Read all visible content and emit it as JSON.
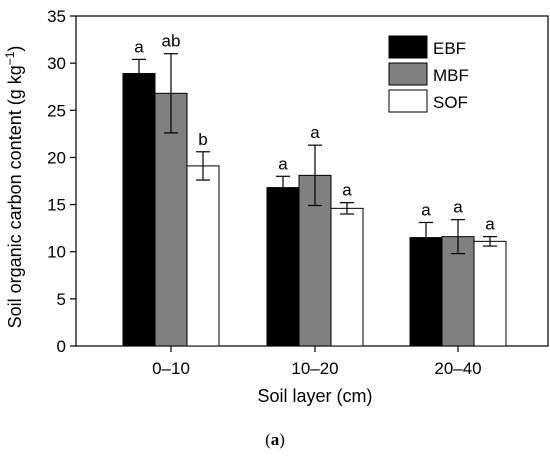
{
  "chart_data": {
    "type": "bar",
    "categories": [
      "0–10",
      "10–20",
      "20–40"
    ],
    "series": [
      {
        "name": "EBF",
        "color": "#000000",
        "values": [
          28.9,
          16.8,
          11.5
        ],
        "errors": [
          1.5,
          1.2,
          1.6
        ],
        "letters": [
          "a",
          "a",
          "a"
        ]
      },
      {
        "name": "MBF",
        "color": "#808080",
        "values": [
          26.8,
          18.1,
          11.6
        ],
        "errors": [
          4.2,
          3.2,
          1.8
        ],
        "letters": [
          "ab",
          "a",
          "a"
        ]
      },
      {
        "name": "SOF",
        "color": "#ffffff",
        "values": [
          19.1,
          14.6,
          11.1
        ],
        "errors": [
          1.5,
          0.6,
          0.5
        ],
        "letters": [
          "b",
          "a",
          "a"
        ]
      }
    ],
    "xlabel": "Soil layer (cm)",
    "ylabel": "Soil organic carbon content (g kg",
    "ylabel_sup": "−1",
    "ylabel_close": ")",
    "ylim": [
      0,
      35
    ],
    "yticks": [
      0,
      5,
      10,
      15,
      20,
      25,
      30,
      35
    ],
    "legend_position": "top-right",
    "grid": false
  },
  "caption": {
    "open": "(",
    "letter": "a",
    "close": ")"
  }
}
